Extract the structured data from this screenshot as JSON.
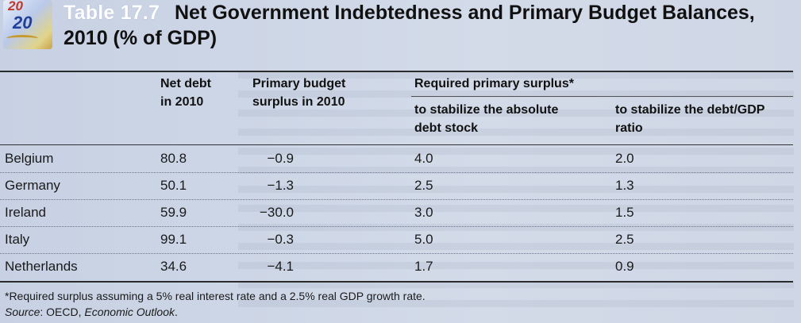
{
  "header": {
    "logo_icon": "euro-20-banknote-icon",
    "table_label": "Table 17.7",
    "title_line1": "Net Government Indebtedness and Primary Budget Balances,",
    "title_line2": "2010 (% of GDP)"
  },
  "columns": {
    "net_debt_line1": "Net debt",
    "net_debt_line2": "in 2010",
    "primary_line1": "Primary budget",
    "primary_line2": "surplus in 2010",
    "required_group": "Required primary surplus*",
    "abs_line1": "to stabilize the absolute",
    "abs_line2": "debt stock",
    "ratio_line1": "to stabilize the debt/GDP",
    "ratio_line2": "ratio"
  },
  "rows": [
    {
      "country": "Belgium",
      "net_debt": "80.8",
      "primary": "−0.9",
      "abs": "4.0",
      "ratio": "2.0"
    },
    {
      "country": "Germany",
      "net_debt": "50.1",
      "primary": "−1.3",
      "abs": "2.5",
      "ratio": "1.3"
    },
    {
      "country": "Ireland",
      "net_debt": "59.9",
      "primary": "−30.0",
      "abs": "3.0",
      "ratio": "1.5"
    },
    {
      "country": "Italy",
      "net_debt": "99.1",
      "primary": "−0.3",
      "abs": "5.0",
      "ratio": "2.5"
    },
    {
      "country": "Netherlands",
      "net_debt": "34.6",
      "primary": "−4.1",
      "abs": "1.7",
      "ratio": "0.9"
    }
  ],
  "footnotes": {
    "required_note": "*Required surplus assuming a 5% real interest rate and a 2.5% real GDP growth rate.",
    "source_label": "Source",
    "source_sep": ": OECD, ",
    "source_title": "Economic Outlook",
    "source_end": "."
  }
}
